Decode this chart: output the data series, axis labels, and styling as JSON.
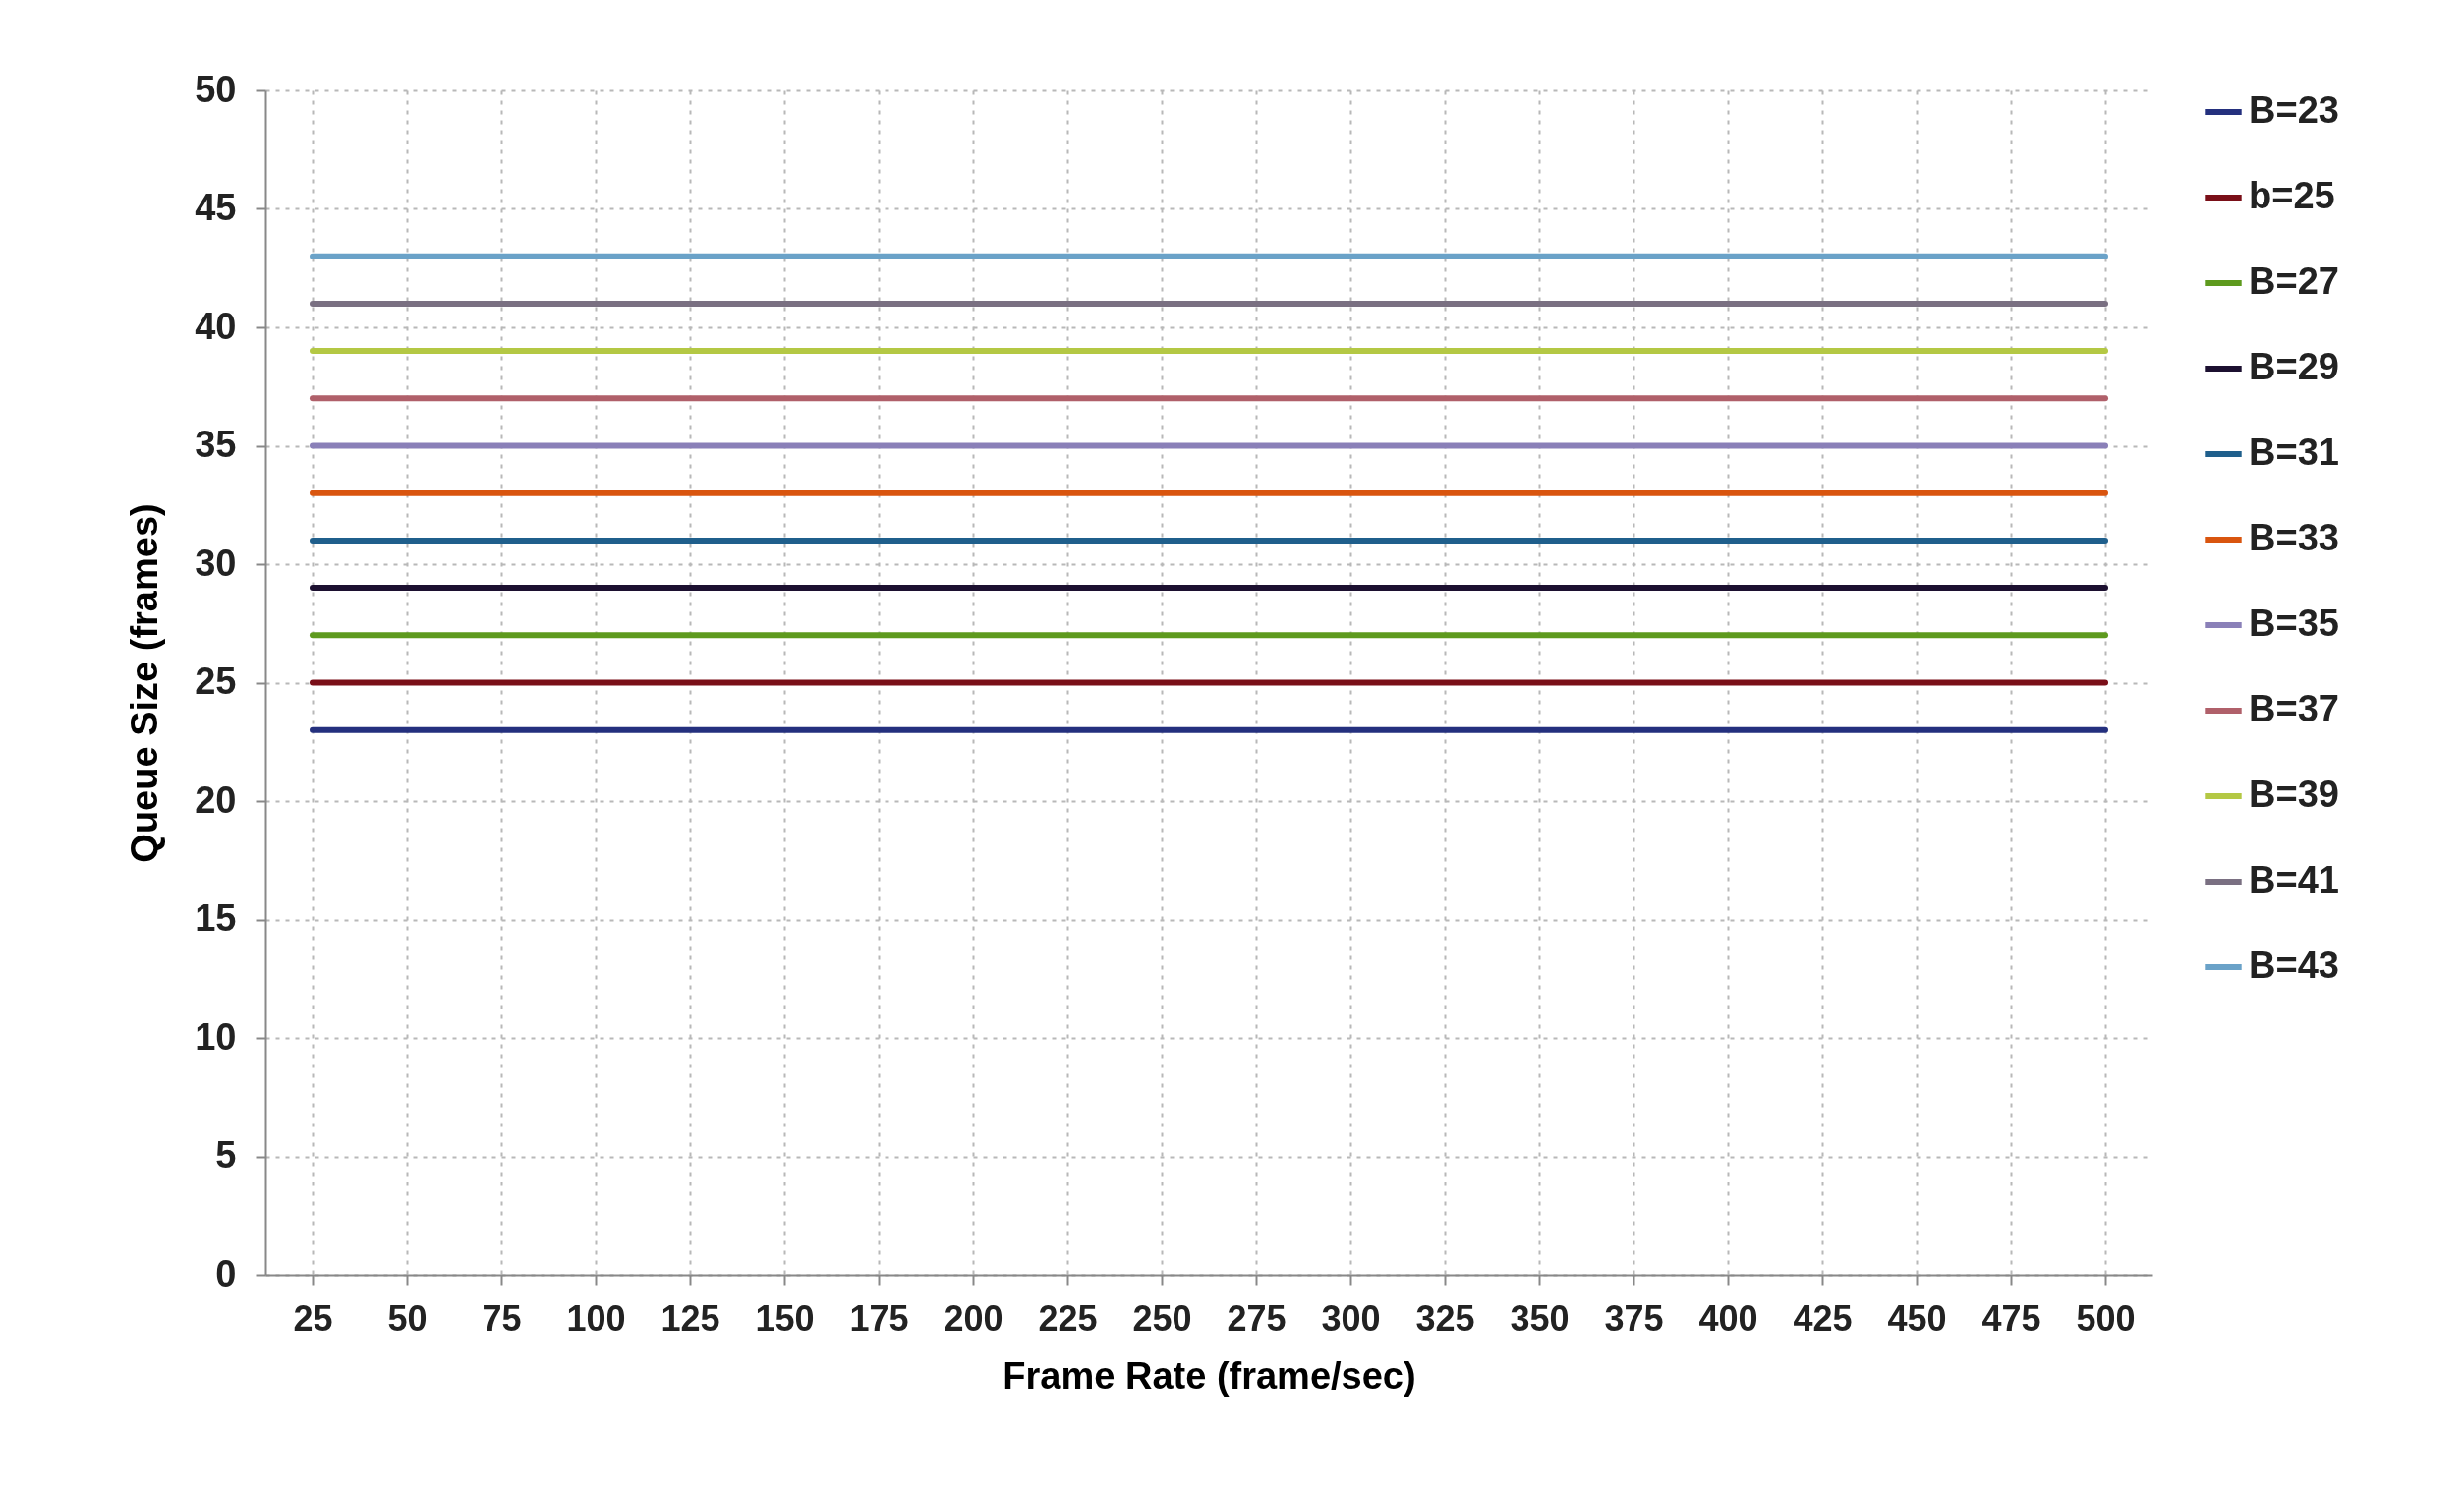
{
  "chart_data": {
    "type": "line",
    "xlabel": "Frame Rate (frame/sec)",
    "ylabel": "Queue Size (frames)",
    "categories": [
      "25",
      "50",
      "75",
      "100",
      "125",
      "150",
      "175",
      "200",
      "225",
      "250",
      "275",
      "300",
      "325",
      "350",
      "375",
      "400",
      "425",
      "450",
      "475",
      "500"
    ],
    "ylim": [
      0,
      50
    ],
    "yticks": [
      0,
      5,
      10,
      15,
      20,
      25,
      30,
      35,
      40,
      45,
      50
    ],
    "grid": true,
    "legend": "right",
    "line_style": "solid",
    "marker": "none",
    "series": [
      {
        "name": "B=23",
        "color": "#24307e",
        "values": [
          23,
          23,
          23,
          23,
          23,
          23,
          23,
          23,
          23,
          23,
          23,
          23,
          23,
          23,
          23,
          23,
          23,
          23,
          23,
          23
        ]
      },
      {
        "name": "b=25",
        "color": "#7a0f18",
        "values": [
          25,
          25,
          25,
          25,
          25,
          25,
          25,
          25,
          25,
          25,
          25,
          25,
          25,
          25,
          25,
          25,
          25,
          25,
          25,
          25
        ]
      },
      {
        "name": "B=27",
        "color": "#5e9a1e",
        "values": [
          27,
          27,
          27,
          27,
          27,
          27,
          27,
          27,
          27,
          27,
          27,
          27,
          27,
          27,
          27,
          27,
          27,
          27,
          27,
          27
        ]
      },
      {
        "name": "B=29",
        "color": "#1c1030",
        "values": [
          29,
          29,
          29,
          29,
          29,
          29,
          29,
          29,
          29,
          29,
          29,
          29,
          29,
          29,
          29,
          29,
          29,
          29,
          29,
          29
        ]
      },
      {
        "name": "B=31",
        "color": "#1f5f8c",
        "values": [
          31,
          31,
          31,
          31,
          31,
          31,
          31,
          31,
          31,
          31,
          31,
          31,
          31,
          31,
          31,
          31,
          31,
          31,
          31,
          31
        ]
      },
      {
        "name": "B=33",
        "color": "#d9550f",
        "values": [
          33,
          33,
          33,
          33,
          33,
          33,
          33,
          33,
          33,
          33,
          33,
          33,
          33,
          33,
          33,
          33,
          33,
          33,
          33,
          33
        ]
      },
      {
        "name": "B=35",
        "color": "#8a80b8",
        "values": [
          35,
          35,
          35,
          35,
          35,
          35,
          35,
          35,
          35,
          35,
          35,
          35,
          35,
          35,
          35,
          35,
          35,
          35,
          35,
          35
        ]
      },
      {
        "name": "B=37",
        "color": "#b0606a",
        "values": [
          37,
          37,
          37,
          37,
          37,
          37,
          37,
          37,
          37,
          37,
          37,
          37,
          37,
          37,
          37,
          37,
          37,
          37,
          37,
          37
        ]
      },
      {
        "name": "B=39",
        "color": "#b4c844",
        "values": [
          39,
          39,
          39,
          39,
          39,
          39,
          39,
          39,
          39,
          39,
          39,
          39,
          39,
          39,
          39,
          39,
          39,
          39,
          39,
          39
        ]
      },
      {
        "name": "B=41",
        "color": "#7a7082",
        "values": [
          41,
          41,
          41,
          41,
          41,
          41,
          41,
          41,
          41,
          41,
          41,
          41,
          41,
          41,
          41,
          41,
          41,
          41,
          41,
          41
        ]
      },
      {
        "name": "B=43",
        "color": "#6aa2c8",
        "values": [
          43,
          43,
          43,
          43,
          43,
          43,
          43,
          43,
          43,
          43,
          43,
          43,
          43,
          43,
          43,
          43,
          43,
          43,
          43,
          43
        ]
      }
    ]
  }
}
